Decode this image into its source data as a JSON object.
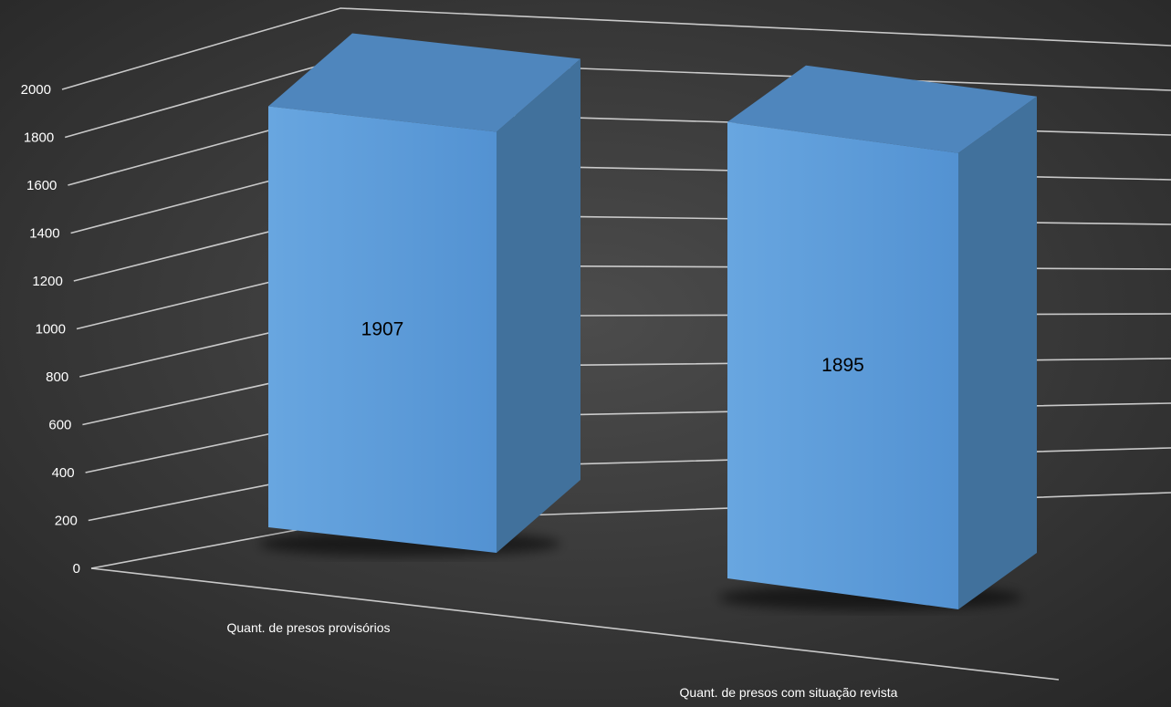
{
  "chart_data": {
    "type": "bar",
    "categories": [
      "Quant. de presos provisórios",
      "Quant. de presos com situação revista"
    ],
    "values": [
      1907,
      1895
    ],
    "ylim": [
      0,
      2000
    ],
    "yticks": [
      0,
      200,
      400,
      600,
      800,
      1000,
      1200,
      1400,
      1600,
      1800,
      2000
    ],
    "data_labels": [
      "1907",
      "1895"
    ],
    "grid": true,
    "style": "3d-perspective",
    "colors": {
      "bar_front": "#5b9bd5",
      "bar_side": "#41719c",
      "bar_top": "#4f86bd",
      "gridline": "#d9d9d9",
      "text": "#ffffff",
      "label": "#000000"
    }
  }
}
